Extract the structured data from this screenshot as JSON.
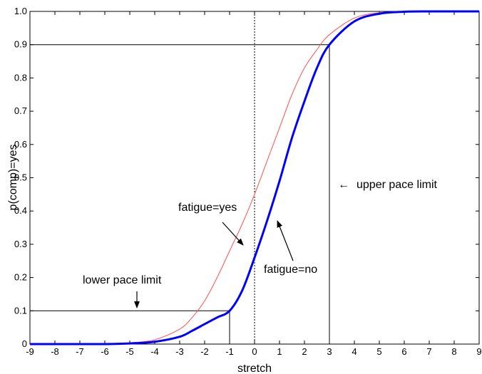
{
  "chart_data": {
    "type": "line",
    "xlabel": "stretch",
    "ylabel": "p(comp)=yes",
    "xlim": [
      -9,
      9
    ],
    "ylim": [
      0,
      1
    ],
    "x_ticks": [
      "-9",
      "-8",
      "-7",
      "-6",
      "-5",
      "-4",
      "-3",
      "-2",
      "-1",
      "0",
      "1",
      "2",
      "3",
      "4",
      "5",
      "6",
      "7",
      "8",
      "9"
    ],
    "y_ticks": [
      "0",
      "0.1",
      "0.2",
      "0.3",
      "0.4",
      "0.5",
      "0.6",
      "0.7",
      "0.8",
      "0.9",
      "1.0"
    ],
    "grid": false,
    "series": [
      {
        "name": "fatigue=yes",
        "color": "#ff5050",
        "x": [
          -9,
          -8,
          -7,
          -6,
          -5,
          -4,
          -3,
          -2.5,
          -2,
          -1.5,
          -1,
          -0.5,
          0,
          0.5,
          1,
          1.5,
          2,
          2.5,
          3,
          4,
          5,
          6,
          7,
          8,
          9
        ],
        "y": [
          0.0,
          0.0,
          0.0,
          0.001,
          0.004,
          0.013,
          0.045,
          0.08,
          0.13,
          0.2,
          0.28,
          0.36,
          0.45,
          0.55,
          0.65,
          0.75,
          0.83,
          0.885,
          0.93,
          0.98,
          0.996,
          0.999,
          1.0,
          1.0,
          1.0
        ]
      },
      {
        "name": "fatigue=no",
        "color": "#0000ff",
        "x": [
          -9,
          -8,
          -7,
          -6,
          -5,
          -4,
          -3,
          -2.5,
          -2,
          -1.5,
          -1,
          -0.5,
          0,
          0.5,
          1,
          1.5,
          2,
          2.5,
          3,
          4,
          5,
          6,
          7,
          8,
          9
        ],
        "y": [
          0.0,
          0.0,
          0.0,
          0.0,
          0.002,
          0.007,
          0.022,
          0.04,
          0.06,
          0.08,
          0.1,
          0.16,
          0.26,
          0.37,
          0.49,
          0.62,
          0.73,
          0.83,
          0.9,
          0.97,
          0.993,
          0.999,
          1.0,
          1.0,
          1.0
        ]
      }
    ],
    "reference_lines": {
      "zero_line_x": 0,
      "lower_pace_limit": {
        "x": -1,
        "y": 0.1
      },
      "upper_pace_limit": {
        "x": 3,
        "y": 0.9
      }
    },
    "annotations": {
      "fatigue_yes": "fatigue=yes",
      "fatigue_no": "fatigue=no",
      "lower_pace_limit": "lower pace limit",
      "upper_pace_limit": "upper pace limit",
      "upper_arrow": "←"
    }
  }
}
